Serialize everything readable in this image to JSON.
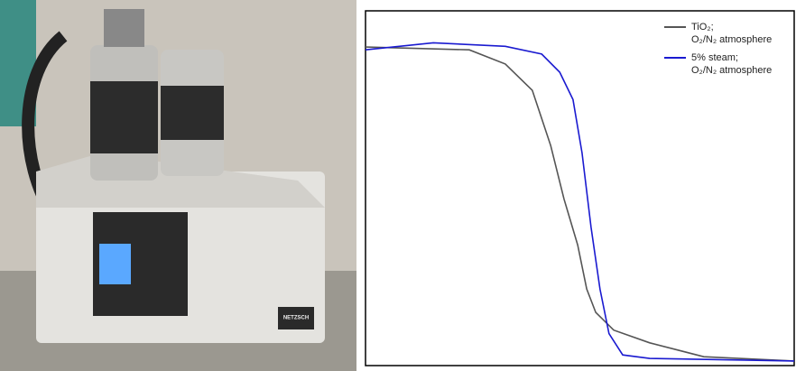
{
  "photo": {
    "brand": "NETZSCH"
  },
  "chart_data": {
    "type": "line",
    "xlim": [
      0,
      100
    ],
    "ylim": [
      0,
      100
    ],
    "series": [
      {
        "name": [
          "TiO₂;",
          "O₂/N₂ atmosphere"
        ],
        "color": "#555555",
        "x": [
          0,
          24.2,
          32.6,
          38.9,
          43.2,
          46.3,
          49.5,
          51.6,
          53.7,
          57.9,
          66.3,
          78.9,
          100
        ],
        "values": [
          89.8,
          89,
          85,
          77.6,
          62,
          47,
          34,
          21.6,
          15,
          10,
          6.4,
          2.5,
          1.3
        ]
      },
      {
        "name": [
          "5% steam;",
          "O₂/N₂ atmosphere"
        ],
        "color": "#1a1ad0",
        "x": [
          0,
          15.8,
          32.6,
          41.1,
          45.3,
          48.4,
          50.5,
          52.6,
          54.7,
          56.8,
          60,
          66.3,
          100
        ],
        "values": [
          89,
          91,
          90,
          87.8,
          82.7,
          75,
          60,
          39,
          21.6,
          9,
          3,
          2,
          1.3
        ]
      }
    ]
  }
}
